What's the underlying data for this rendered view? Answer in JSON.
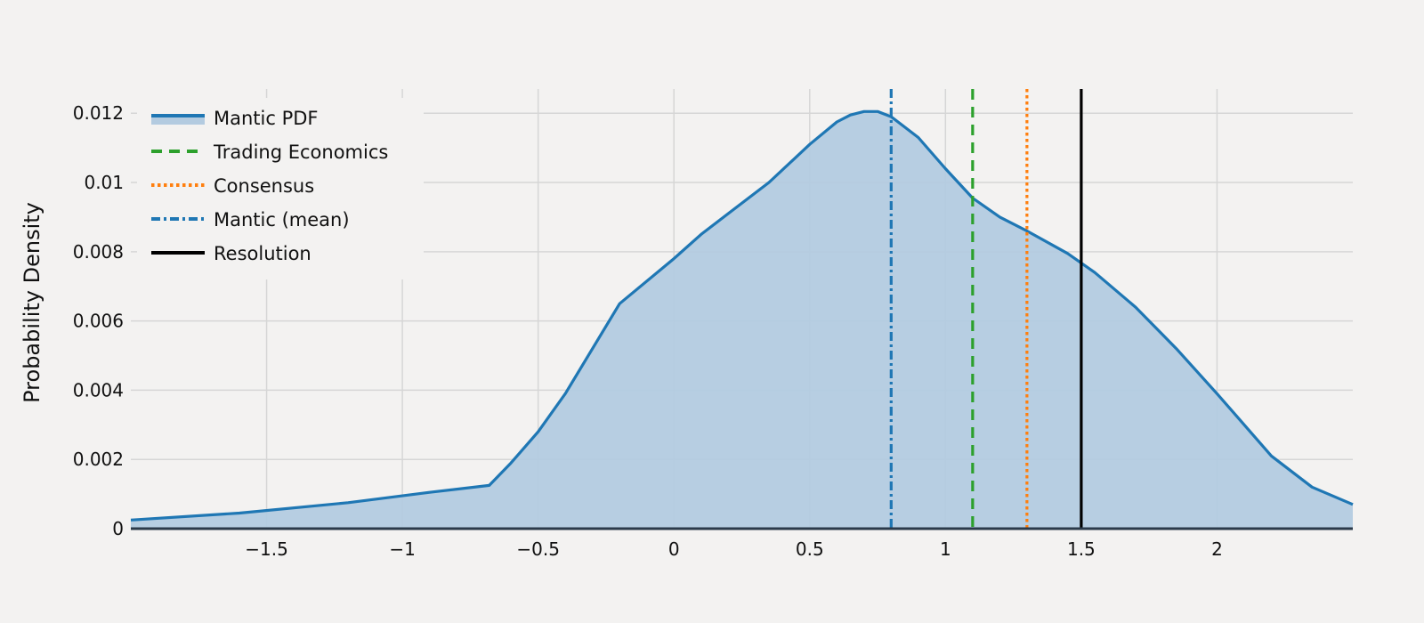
{
  "chart_data": {
    "type": "area",
    "title": "",
    "xlabel": "",
    "ylabel": "Probability Density",
    "xlim": [
      -2,
      2.5
    ],
    "ylim": [
      0,
      0.0127
    ],
    "x_ticks": [
      -1.5,
      -1,
      -0.5,
      0,
      0.5,
      1,
      1.5,
      2
    ],
    "x_tick_labels": [
      "−1.5",
      "−1",
      "−0.5",
      "0",
      "0.5",
      "1",
      "1.5",
      "2"
    ],
    "y_ticks": [
      0,
      0.002,
      0.004,
      0.006,
      0.008,
      0.01,
      0.012
    ],
    "y_tick_labels": [
      "0",
      "0.002",
      "0.004",
      "0.006",
      "0.008",
      "0.01",
      "0.012"
    ],
    "grid": true,
    "legend_position": "top-left",
    "series": [
      {
        "name": "Mantic PDF",
        "style": "solid-with-fill",
        "color": "#1f77b4",
        "fill_color": "#b3cbe0",
        "x": [
          -2.0,
          -1.6,
          -1.2,
          -0.9,
          -0.68,
          -0.6,
          -0.5,
          -0.4,
          -0.2,
          0.0,
          0.1,
          0.2,
          0.35,
          0.5,
          0.6,
          0.65,
          0.7,
          0.75,
          0.8,
          0.9,
          1.0,
          1.1,
          1.2,
          1.3,
          1.45,
          1.55,
          1.7,
          1.85,
          2.0,
          2.2,
          2.35,
          2.5
        ],
        "y": [
          0.00025,
          0.00045,
          0.00075,
          0.00105,
          0.00125,
          0.0019,
          0.0028,
          0.0039,
          0.0065,
          0.0078,
          0.0085,
          0.0091,
          0.01,
          0.0111,
          0.01175,
          0.01195,
          0.01205,
          0.01205,
          0.0119,
          0.0113,
          0.0104,
          0.00955,
          0.009,
          0.0086,
          0.00795,
          0.0074,
          0.0064,
          0.0052,
          0.0039,
          0.0021,
          0.0012,
          0.0007
        ]
      },
      {
        "name": "Trading Economics",
        "style": "dashed",
        "color": "#2ca02c",
        "x_value": 1.1
      },
      {
        "name": "Consensus",
        "style": "dotted",
        "color": "#ff7f0e",
        "x_value": 1.3
      },
      {
        "name": "Mantic (mean)",
        "style": "dashdot",
        "color": "#1f77b4",
        "x_value": 0.8
      },
      {
        "name": "Resolution",
        "style": "solid",
        "color": "#000000",
        "x_value": 1.5
      }
    ]
  }
}
